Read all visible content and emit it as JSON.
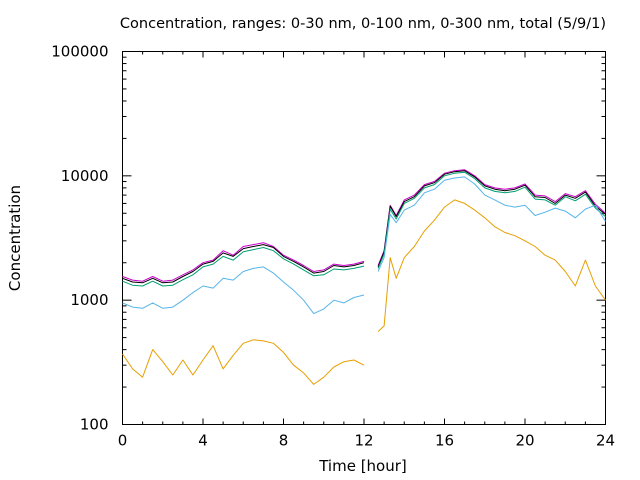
{
  "chart_data": {
    "type": "line",
    "title": "Concentration, ranges: 0-30 nm, 0-100 nm, 0-300 nm, total (5/9/1)",
    "xlabel": "Time [hour]",
    "ylabel": "Concentration",
    "xlim": [
      0,
      24
    ],
    "ylim": [
      100,
      100000
    ],
    "yscale": "log",
    "grid": false,
    "legend": "none",
    "x_ticks": [
      "0",
      "4",
      "8",
      "12",
      "16",
      "20",
      "24"
    ],
    "y_ticks": [
      "100",
      "1000",
      "10000",
      "100000"
    ],
    "gap": [
      12.1,
      12.6
    ],
    "x": [
      0,
      0.5,
      1,
      1.5,
      2,
      2.5,
      3,
      3.5,
      4,
      4.5,
      5,
      5.5,
      6,
      6.5,
      7,
      7.5,
      8,
      8.5,
      9,
      9.5,
      10,
      10.5,
      11,
      11.5,
      12,
      12.7,
      13,
      13.3,
      13.6,
      14,
      14.5,
      15,
      15.5,
      16,
      16.5,
      17,
      17.5,
      18,
      18.5,
      19,
      19.5,
      20,
      20.5,
      21,
      21.5,
      22,
      22.5,
      23,
      23.5,
      24
    ],
    "series": [
      {
        "color": "#cc00cc",
        "values": [
          1550,
          1450,
          1420,
          1550,
          1420,
          1450,
          1600,
          1750,
          2000,
          2100,
          2500,
          2300,
          2700,
          2800,
          2900,
          2700,
          2300,
          2100,
          1900,
          1700,
          1750,
          1950,
          1900,
          1950,
          2050,
          1900,
          2500,
          5800,
          4800,
          6400,
          7000,
          8500,
          9000,
          10500,
          11000,
          11200,
          10000,
          8500,
          8000,
          7800,
          8000,
          8600,
          7000,
          6900,
          6200,
          7200,
          6800,
          7600,
          5900,
          5000
        ]
      },
      {
        "color": "#000000",
        "values": [
          1500,
          1400,
          1380,
          1500,
          1380,
          1400,
          1550,
          1700,
          1950,
          2050,
          2400,
          2250,
          2600,
          2700,
          2800,
          2650,
          2250,
          2050,
          1850,
          1650,
          1700,
          1900,
          1850,
          1900,
          2000,
          1850,
          2450,
          5700,
          4700,
          6200,
          6800,
          8300,
          8800,
          10300,
          10800,
          11000,
          9800,
          8300,
          7800,
          7600,
          7800,
          8400,
          6800,
          6700,
          6000,
          7000,
          6600,
          7400,
          5700,
          4900
        ]
      },
      {
        "color": "#009e73",
        "values": [
          1420,
          1320,
          1300,
          1420,
          1300,
          1320,
          1460,
          1600,
          1850,
          1950,
          2250,
          2100,
          2450,
          2550,
          2650,
          2500,
          2150,
          1950,
          1750,
          1570,
          1600,
          1780,
          1750,
          1800,
          1880,
          1800,
          2350,
          5400,
          4500,
          6000,
          6600,
          8000,
          8500,
          10000,
          10500,
          10700,
          9500,
          8000,
          7500,
          7300,
          7500,
          8100,
          6500,
          6400,
          5800,
          6800,
          6300,
          7100,
          5500,
          4700
        ]
      },
      {
        "color": "#56b4e9",
        "values": [
          950,
          880,
          860,
          950,
          860,
          880,
          1000,
          1150,
          1300,
          1250,
          1500,
          1450,
          1700,
          1800,
          1850,
          1650,
          1400,
          1200,
          1000,
          780,
          850,
          1000,
          950,
          1050,
          1100,
          1700,
          2200,
          4900,
          4200,
          5300,
          5800,
          7300,
          7800,
          9200,
          9600,
          9800,
          8600,
          7000,
          6400,
          5800,
          5600,
          5800,
          4800,
          5100,
          5500,
          5200,
          4600,
          5400,
          5800,
          4300
        ]
      },
      {
        "color": "#e69f00",
        "values": [
          370,
          280,
          240,
          400,
          320,
          250,
          330,
          250,
          330,
          430,
          280,
          360,
          450,
          480,
          470,
          450,
          380,
          300,
          260,
          210,
          240,
          290,
          320,
          330,
          300,
          560,
          620,
          2200,
          1500,
          2200,
          2700,
          3600,
          4400,
          5600,
          6400,
          6000,
          5300,
          4600,
          3900,
          3500,
          3300,
          3000,
          2700,
          2300,
          2100,
          1700,
          1300,
          2100,
          1300,
          1000
        ]
      }
    ]
  }
}
